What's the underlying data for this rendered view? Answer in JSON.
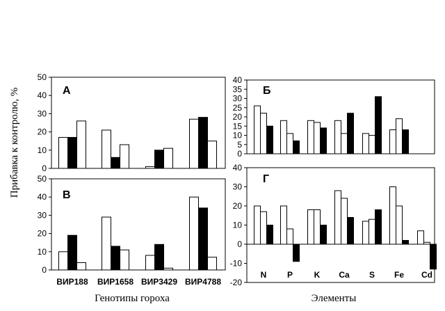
{
  "figure": {
    "ylabel": "Прибавка к контролю, %",
    "xlabel_left": "Генотипы гороха",
    "xlabel_right": "Элементы"
  },
  "chart_data": [
    {
      "id": "A",
      "type": "bar",
      "panel_label": "А",
      "categories": [
        "ВИР188",
        "ВИР1658",
        "ВИР3429",
        "ВИР4788"
      ],
      "show_categories": false,
      "ylim": [
        0,
        50
      ],
      "yticks": [
        0,
        10,
        20,
        30,
        40,
        50
      ],
      "series_fill": [
        "#ffffff",
        "#000000",
        "#ffffff"
      ],
      "series": [
        {
          "values": [
            17,
            21,
            1,
            27
          ]
        },
        {
          "values": [
            17,
            6,
            10,
            28
          ]
        },
        {
          "values": [
            26,
            13,
            11,
            15
          ]
        }
      ]
    },
    {
      "id": "B",
      "type": "bar",
      "panel_label": "В",
      "categories": [
        "ВИР188",
        "ВИР1658",
        "ВИР3429",
        "ВИР4788"
      ],
      "show_categories": true,
      "ylim": [
        0,
        50
      ],
      "yticks": [
        0,
        10,
        20,
        30,
        40,
        50
      ],
      "series_fill": [
        "#ffffff",
        "#000000",
        "#ffffff"
      ],
      "series": [
        {
          "values": [
            10,
            29,
            8,
            40
          ]
        },
        {
          "values": [
            19,
            13,
            14,
            34
          ]
        },
        {
          "values": [
            4,
            11,
            1,
            7
          ]
        }
      ]
    },
    {
      "id": "Б",
      "type": "bar",
      "panel_label": "Б",
      "categories": [
        "N",
        "P",
        "K",
        "Ca",
        "S",
        "Fe",
        "Cd"
      ],
      "show_categories": false,
      "ylim": [
        0,
        40
      ],
      "yticks": [
        0,
        5,
        10,
        15,
        20,
        25,
        30,
        35,
        40
      ],
      "series_fill": [
        "#ffffff",
        "#ffffff",
        "#000000"
      ],
      "series": [
        {
          "values": [
            26,
            18,
            18,
            18,
            11,
            13,
            0
          ]
        },
        {
          "values": [
            22,
            11,
            17,
            11,
            10,
            19,
            0
          ]
        },
        {
          "values": [
            15,
            7,
            14,
            22,
            31,
            13,
            0
          ]
        }
      ]
    },
    {
      "id": "Г",
      "type": "bar",
      "panel_label": "Г",
      "categories": [
        "N",
        "P",
        "K",
        "Ca",
        "S",
        "Fe",
        "Cd"
      ],
      "show_categories": true,
      "ylim": [
        -20,
        40
      ],
      "yticks": [
        -20,
        -10,
        0,
        10,
        20,
        30,
        40
      ],
      "series_fill": [
        "#ffffff",
        "#ffffff",
        "#000000"
      ],
      "series": [
        {
          "values": [
            20,
            20,
            18,
            28,
            12,
            30,
            7
          ]
        },
        {
          "values": [
            17,
            8,
            18,
            24,
            13,
            20,
            1
          ]
        },
        {
          "values": [
            10,
            -9,
            10,
            14,
            18,
            2,
            -13
          ]
        }
      ]
    }
  ]
}
